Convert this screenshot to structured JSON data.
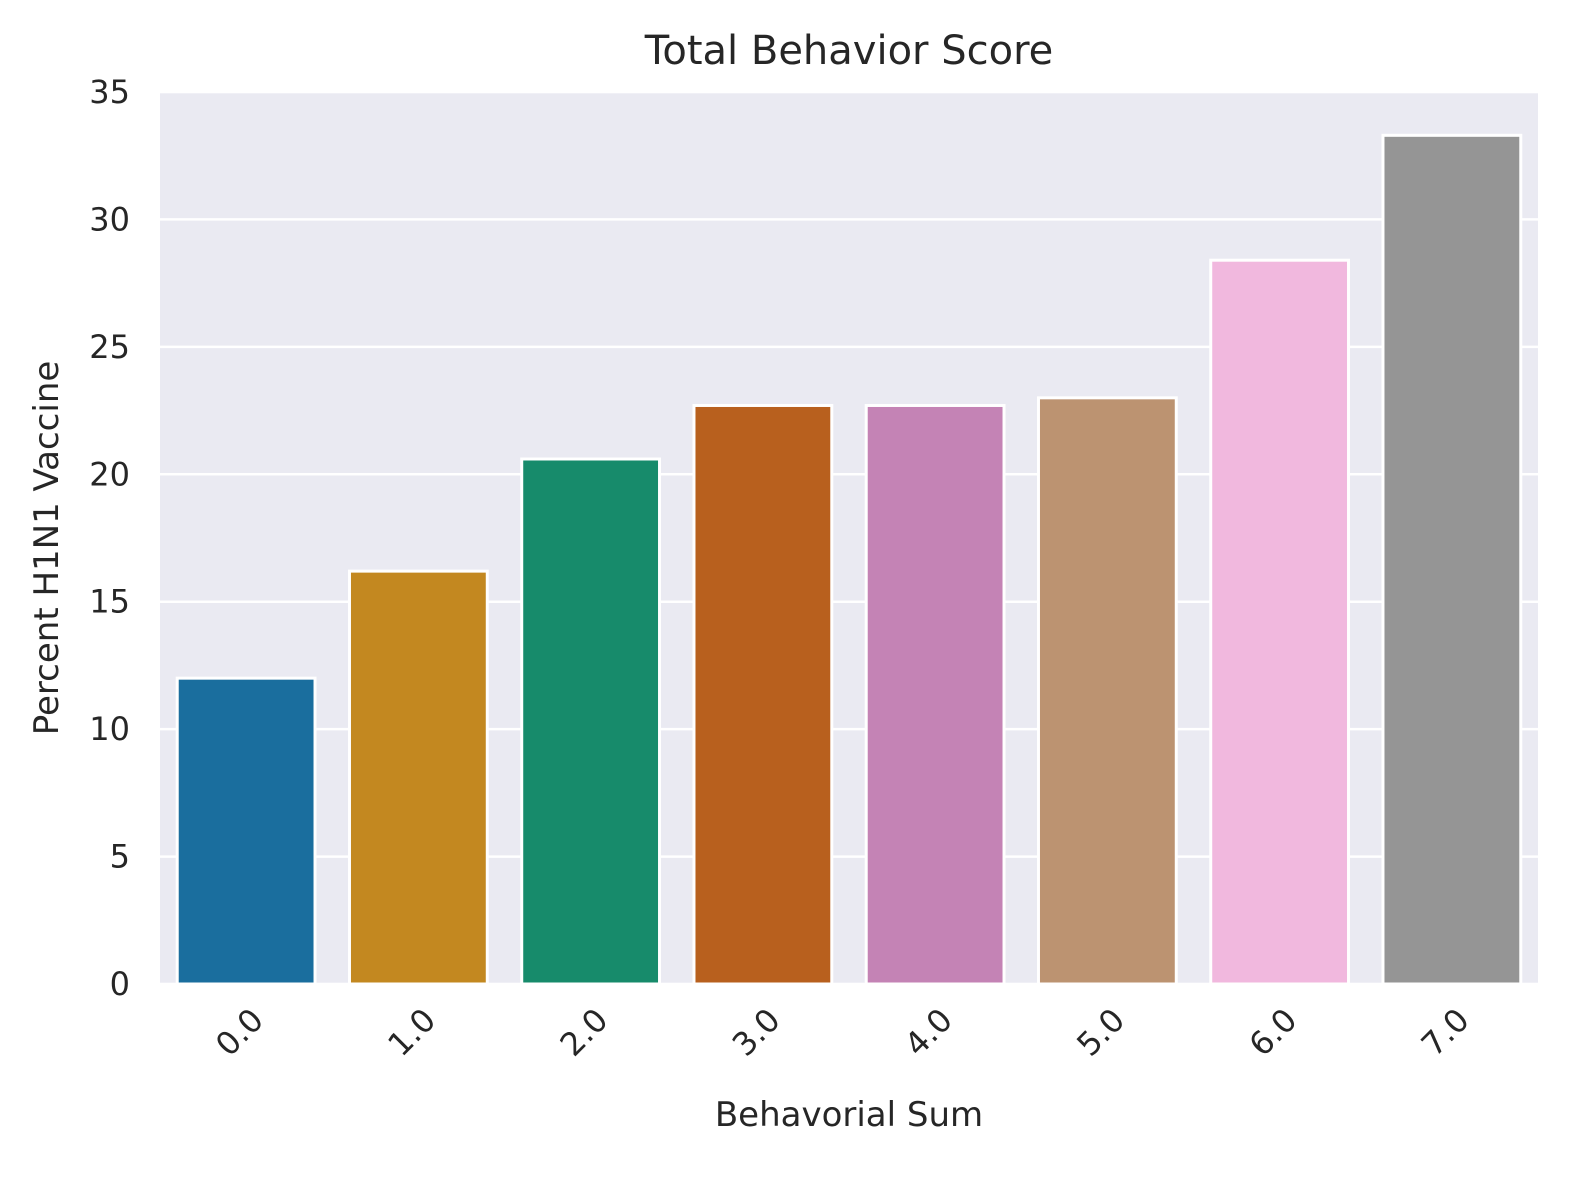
{
  "chart_data": {
    "type": "bar",
    "title": "Total Behavior Score",
    "xlabel": "Behavorial Sum",
    "ylabel": "Percent H1N1 Vaccine",
    "categories": [
      "0.0",
      "1.0",
      "2.0",
      "3.0",
      "4.0",
      "5.0",
      "6.0",
      "7.0"
    ],
    "values": [
      12.0,
      16.2,
      20.6,
      22.7,
      22.7,
      23.0,
      28.4,
      33.3
    ],
    "ylim": [
      0,
      35
    ],
    "yticks": [
      0,
      5,
      10,
      15,
      20,
      25,
      30,
      35
    ],
    "ytick_labels": [
      "0",
      "5",
      "10",
      "15",
      "20",
      "25",
      "30",
      "35"
    ],
    "grid": true,
    "legend": "none",
    "colors": {
      "background": "#eaeaf2",
      "grid": "#ffffff",
      "bars": [
        "#1a6e9e",
        "#c38820",
        "#178b6b",
        "#b8601e",
        "#c483b5",
        "#bc9371",
        "#f1b8de",
        "#959595"
      ]
    }
  }
}
